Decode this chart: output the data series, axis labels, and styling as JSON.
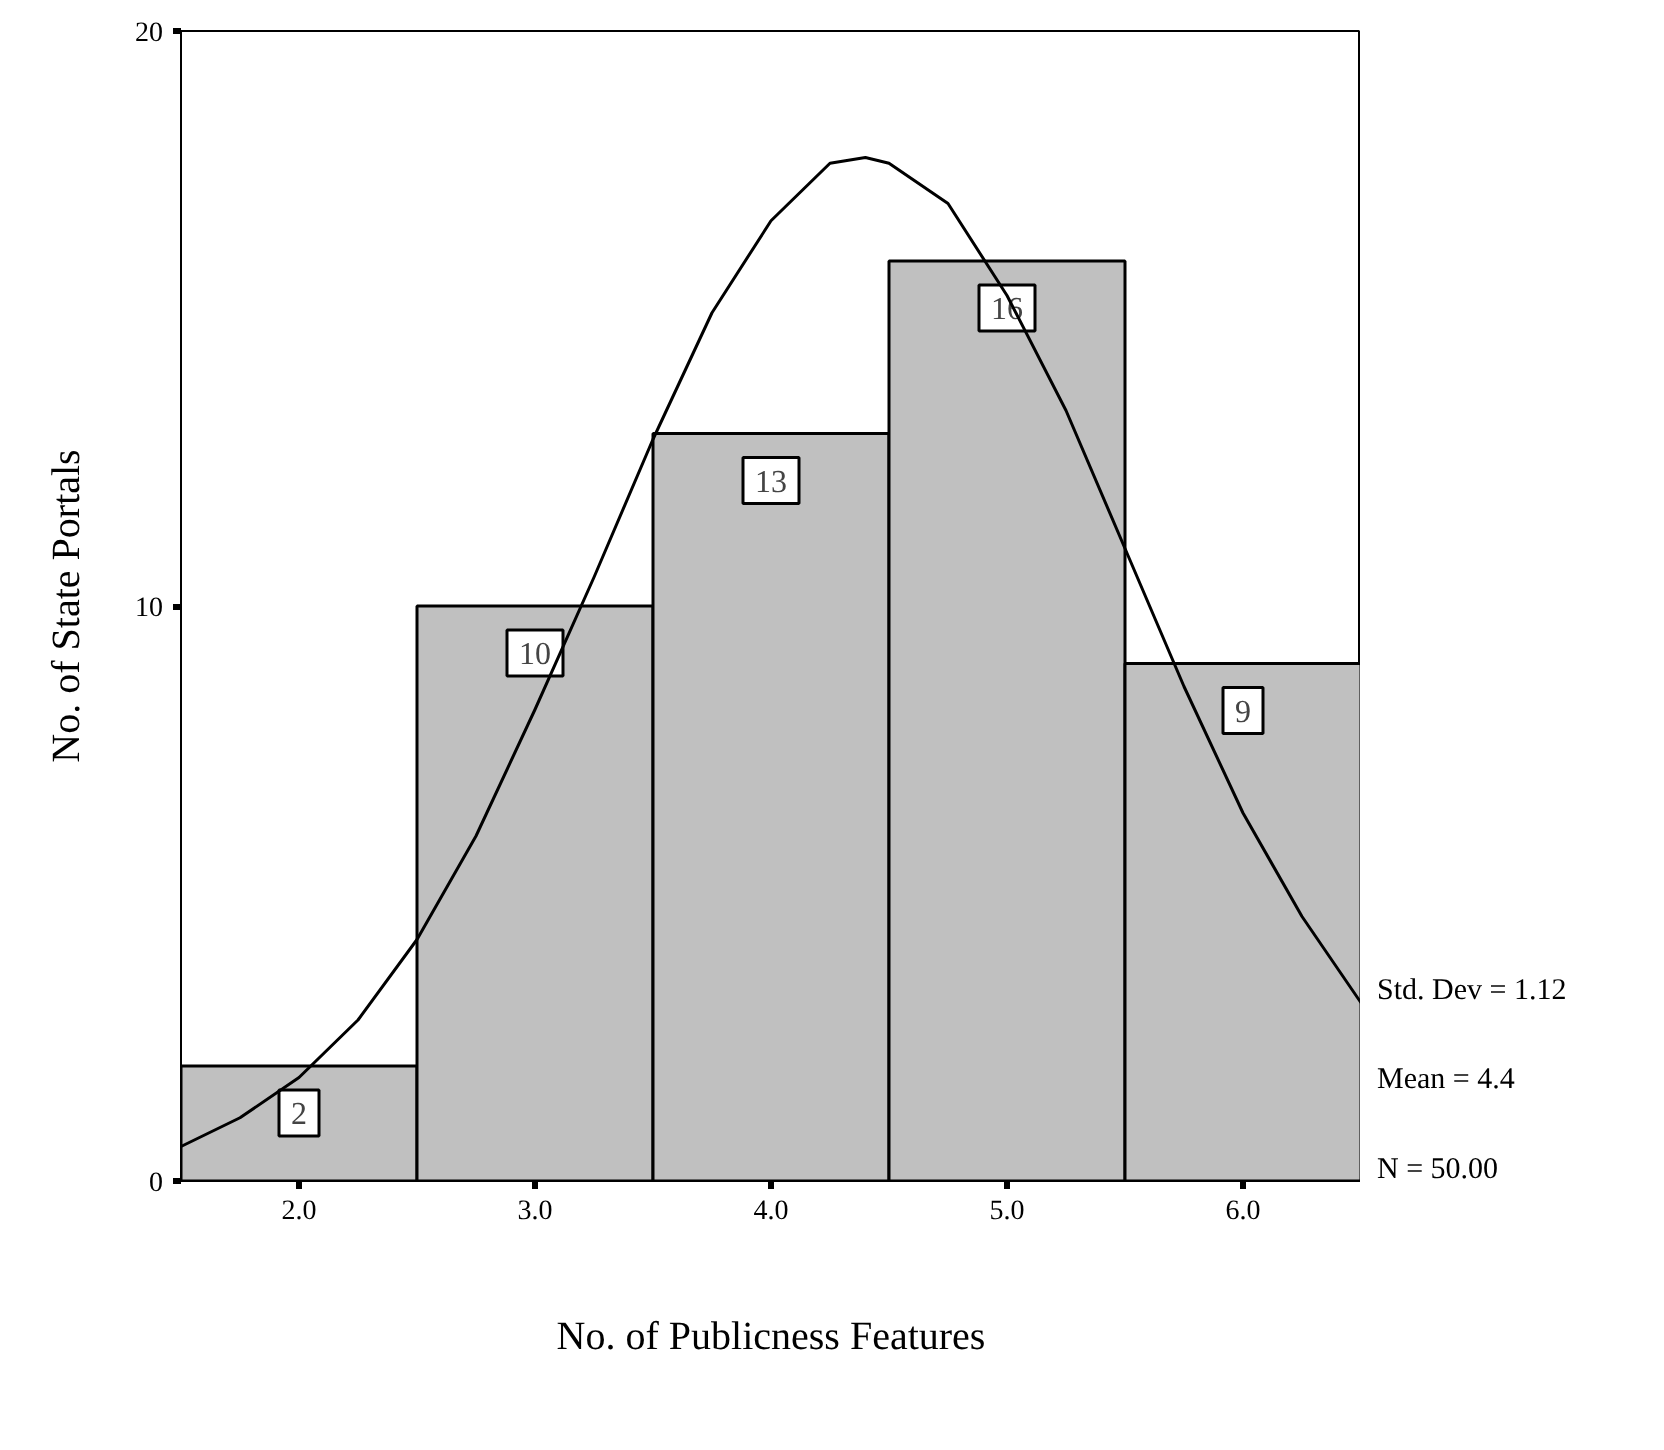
{
  "chart_data": {
    "type": "histogram",
    "xlabel": "No. of Publicness Features",
    "ylabel": "No. of State Portals",
    "bins": [
      1.5,
      2.5,
      3.5,
      4.5,
      5.5,
      6.5
    ],
    "series": [
      {
        "color": "#c0c0c0",
        "values": [
          2,
          10,
          13,
          16,
          9
        ],
        "value_labels": [
          "2",
          "10",
          "13",
          "16",
          "9"
        ]
      },
      {
        "type": "line",
        "color": "#000000",
        "x": [
          1.5,
          1.75,
          2.0,
          2.25,
          2.5,
          2.75,
          3.0,
          3.25,
          3.5,
          3.75,
          4.0,
          4.25,
          4.4,
          4.5,
          4.75,
          5.0,
          5.25,
          5.5,
          5.75,
          6.0,
          6.25,
          6.5
        ],
        "values": [
          0.6,
          1.1,
          1.8,
          2.8,
          4.2,
          6.0,
          8.2,
          10.5,
          12.9,
          15.1,
          16.7,
          17.7,
          17.8,
          17.7,
          17.0,
          15.4,
          13.4,
          11.0,
          8.6,
          6.4,
          4.6,
          3.1
        ]
      }
    ],
    "xlim": [
      1.5,
      6.5
    ],
    "xticks": [
      {
        "value": 2,
        "label": "2.0"
      },
      {
        "value": 3,
        "label": "3.0"
      },
      {
        "value": 4,
        "label": "4.0"
      },
      {
        "value": 5,
        "label": "5.0"
      },
      {
        "value": 6,
        "label": "6.0"
      }
    ],
    "ylim": [
      0,
      20
    ],
    "yticks": [
      0,
      10,
      20
    ],
    "grid": false,
    "annotations": [
      "Std. Dev = 1.12",
      "Mean = 4.4",
      "N = 50.00"
    ]
  }
}
